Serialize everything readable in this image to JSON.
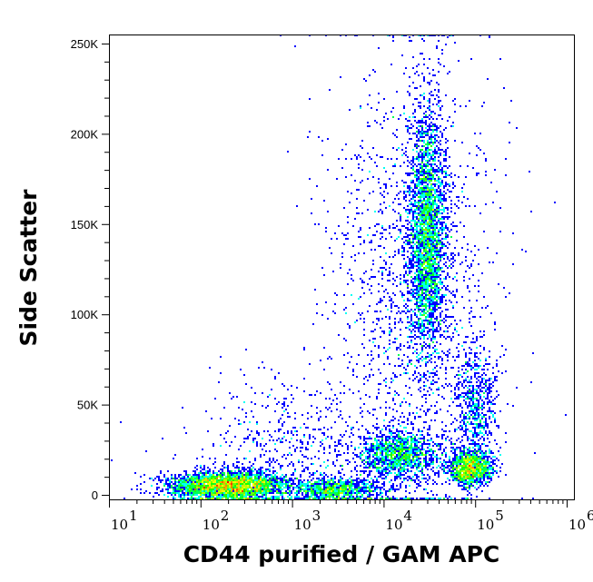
{
  "chart_data": {
    "type": "scatter",
    "subtype": "density-dot-plot",
    "xlabel": "CD44 purified / GAM APC",
    "ylabel": "Side Scatter",
    "x_scale": "log",
    "xlim": [
      10,
      1200000
    ],
    "ylim": [
      -2500,
      255000
    ],
    "x_ticks": [
      {
        "value": 10,
        "base": "10",
        "exp": "1"
      },
      {
        "value": 100,
        "base": "10",
        "exp": "2"
      },
      {
        "value": 1000,
        "base": "10",
        "exp": "3"
      },
      {
        "value": 10000,
        "base": "10",
        "exp": "4"
      },
      {
        "value": 100000,
        "base": "10",
        "exp": "5"
      },
      {
        "value": 1000000,
        "base": "10",
        "exp": "6"
      }
    ],
    "y_ticks": [
      {
        "value": 0,
        "label": "0"
      },
      {
        "value": 50000,
        "label": "50K"
      },
      {
        "value": 100000,
        "label": "100K"
      },
      {
        "value": 150000,
        "label": "150K"
      },
      {
        "value": 200000,
        "label": "200K"
      },
      {
        "value": 250000,
        "label": "250K"
      }
    ],
    "grid": false,
    "colormap": [
      "#0000ff",
      "#00ffff",
      "#00ff00",
      "#ffff00",
      "#ff0000"
    ],
    "populations": [
      {
        "x_center": 200,
        "x_log_sd": 0.33,
        "y_center": 5000,
        "y_sd": 4000,
        "events": 3200
      },
      {
        "x_center": 3000,
        "x_log_sd": 0.25,
        "y_center": 3000,
        "y_sd": 3000,
        "events": 900
      },
      {
        "x_center": 15000,
        "x_log_sd": 0.22,
        "y_center": 22000,
        "y_sd": 7000,
        "events": 1300
      },
      {
        "x_center": 90000,
        "x_log_sd": 0.12,
        "y_center": 15000,
        "y_sd": 5000,
        "events": 1300
      },
      {
        "x_center": 30000,
        "x_log_sd": 0.1,
        "y_center": 145000,
        "y_sd": 35000,
        "events": 3000
      },
      {
        "x_center": 100000,
        "x_log_sd": 0.12,
        "y_center": 50000,
        "y_sd": 16000,
        "events": 600
      },
      {
        "x_center": 20000,
        "x_log_sd": 0.45,
        "y_center": 110000,
        "y_sd": 70000,
        "events": 1800
      },
      {
        "x_center": 1000,
        "x_log_sd": 0.5,
        "y_center": 25000,
        "y_sd": 20000,
        "events": 600
      }
    ]
  }
}
